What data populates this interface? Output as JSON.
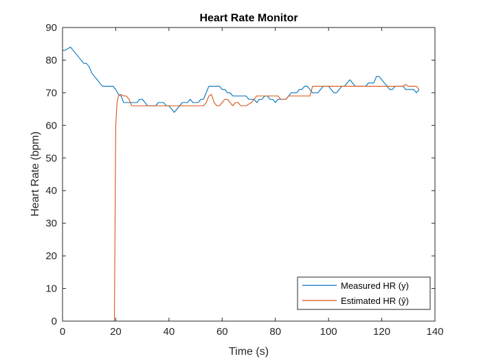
{
  "chart_data": {
    "type": "line",
    "title": "Heart Rate Monitor",
    "xlabel": "Time (s)",
    "ylabel": "Heart Rate (bpm)",
    "xlim": [
      0,
      140
    ],
    "ylim": [
      0,
      90
    ],
    "xticks": [
      0,
      20,
      40,
      60,
      80,
      100,
      120,
      140
    ],
    "yticks": [
      0,
      10,
      20,
      30,
      40,
      50,
      60,
      70,
      80,
      90
    ],
    "grid": false,
    "legend": "bottom-right",
    "series": [
      {
        "name": "Measured HR (y)",
        "color": "#0072BD",
        "points": [
          [
            0,
            83
          ],
          [
            1,
            83
          ],
          [
            2,
            83.5
          ],
          [
            3,
            84
          ],
          [
            4,
            83
          ],
          [
            5,
            82
          ],
          [
            6,
            81
          ],
          [
            7,
            80
          ],
          [
            8,
            79
          ],
          [
            9,
            79
          ],
          [
            10,
            78
          ],
          [
            11,
            76
          ],
          [
            12,
            75
          ],
          [
            13,
            74
          ],
          [
            14,
            73
          ],
          [
            15,
            72
          ],
          [
            16,
            72
          ],
          [
            17,
            72
          ],
          [
            18,
            72
          ],
          [
            19,
            72
          ],
          [
            20,
            71
          ],
          [
            21,
            69.5
          ],
          [
            22,
            69
          ],
          [
            23,
            67
          ],
          [
            24,
            67
          ],
          [
            25,
            67
          ],
          [
            26,
            67
          ],
          [
            27,
            67
          ],
          [
            28,
            67
          ],
          [
            29,
            68
          ],
          [
            30,
            68
          ],
          [
            31,
            67
          ],
          [
            32,
            66
          ],
          [
            33,
            66
          ],
          [
            34,
            66
          ],
          [
            35,
            66
          ],
          [
            36,
            67
          ],
          [
            37,
            67
          ],
          [
            38,
            67
          ],
          [
            39,
            66
          ],
          [
            40,
            66
          ],
          [
            41,
            65
          ],
          [
            42,
            64
          ],
          [
            43,
            65
          ],
          [
            44,
            66
          ],
          [
            45,
            67
          ],
          [
            46,
            67
          ],
          [
            47,
            67
          ],
          [
            48,
            68
          ],
          [
            49,
            67
          ],
          [
            50,
            67
          ],
          [
            51,
            67
          ],
          [
            52,
            68
          ],
          [
            53,
            68
          ],
          [
            54,
            70
          ],
          [
            55,
            72
          ],
          [
            56,
            72
          ],
          [
            57,
            72
          ],
          [
            58,
            72
          ],
          [
            59,
            72
          ],
          [
            60,
            71
          ],
          [
            61,
            71
          ],
          [
            62,
            70
          ],
          [
            63,
            70
          ],
          [
            64,
            69
          ],
          [
            65,
            69
          ],
          [
            66,
            69
          ],
          [
            67,
            69
          ],
          [
            68,
            69
          ],
          [
            69,
            69
          ],
          [
            70,
            68
          ],
          [
            71,
            68
          ],
          [
            72,
            68
          ],
          [
            73,
            67
          ],
          [
            74,
            68
          ],
          [
            75,
            68
          ],
          [
            76,
            69
          ],
          [
            77,
            69
          ],
          [
            78,
            68
          ],
          [
            79,
            68
          ],
          [
            80,
            67
          ],
          [
            81,
            68
          ],
          [
            82,
            68
          ],
          [
            83,
            68
          ],
          [
            84,
            68
          ],
          [
            85,
            69
          ],
          [
            86,
            70
          ],
          [
            87,
            70
          ],
          [
            88,
            70
          ],
          [
            89,
            71
          ],
          [
            90,
            71
          ],
          [
            91,
            72
          ],
          [
            92,
            72
          ],
          [
            93,
            71
          ],
          [
            94,
            70
          ],
          [
            95,
            70
          ],
          [
            96,
            70
          ],
          [
            97,
            71
          ],
          [
            98,
            72
          ],
          [
            99,
            72
          ],
          [
            100,
            72
          ],
          [
            101,
            71
          ],
          [
            102,
            70
          ],
          [
            103,
            70
          ],
          [
            104,
            71
          ],
          [
            105,
            72
          ],
          [
            106,
            72
          ],
          [
            107,
            73
          ],
          [
            108,
            74
          ],
          [
            109,
            73
          ],
          [
            110,
            72
          ],
          [
            111,
            72
          ],
          [
            112,
            72
          ],
          [
            113,
            72
          ],
          [
            114,
            72
          ],
          [
            115,
            73
          ],
          [
            116,
            73
          ],
          [
            117,
            73
          ],
          [
            118,
            75
          ],
          [
            119,
            75
          ],
          [
            120,
            74
          ],
          [
            121,
            73
          ],
          [
            122,
            72
          ],
          [
            123,
            71
          ],
          [
            124,
            71
          ],
          [
            125,
            72
          ],
          [
            126,
            72
          ],
          [
            127,
            72
          ],
          [
            128,
            72
          ],
          [
            129,
            71
          ],
          [
            130,
            71
          ],
          [
            131,
            71
          ],
          [
            132,
            71
          ],
          [
            133,
            70
          ],
          [
            134,
            71
          ]
        ]
      },
      {
        "name": "Estimated HR (ŷ)",
        "color": "#D95319",
        "points": [
          [
            0,
            0
          ],
          [
            19.5,
            0
          ],
          [
            20,
            60
          ],
          [
            20.5,
            67
          ],
          [
            21,
            69
          ],
          [
            22,
            69.5
          ],
          [
            23,
            69
          ],
          [
            24,
            69
          ],
          [
            25,
            68
          ],
          [
            26,
            66
          ],
          [
            27,
            66
          ],
          [
            28,
            66
          ],
          [
            29,
            66
          ],
          [
            30,
            66
          ],
          [
            31,
            66
          ],
          [
            32,
            66
          ],
          [
            33,
            66
          ],
          [
            34,
            66
          ],
          [
            35,
            66
          ],
          [
            36,
            66
          ],
          [
            37,
            66
          ],
          [
            38,
            66
          ],
          [
            39,
            66
          ],
          [
            40,
            66
          ],
          [
            41,
            66
          ],
          [
            42,
            66
          ],
          [
            43,
            66
          ],
          [
            44,
            66
          ],
          [
            45,
            66
          ],
          [
            46,
            66
          ],
          [
            47,
            66
          ],
          [
            48,
            66
          ],
          [
            49,
            66
          ],
          [
            50,
            66
          ],
          [
            51,
            66
          ],
          [
            52,
            66
          ],
          [
            53,
            66
          ],
          [
            54,
            67
          ],
          [
            55,
            69
          ],
          [
            56,
            69.5
          ],
          [
            57,
            67
          ],
          [
            58,
            66
          ],
          [
            59,
            66
          ],
          [
            60,
            67
          ],
          [
            61,
            68
          ],
          [
            62,
            68
          ],
          [
            63,
            67
          ],
          [
            64,
            66
          ],
          [
            65,
            67
          ],
          [
            66,
            67
          ],
          [
            67,
            66
          ],
          [
            68,
            66
          ],
          [
            69,
            66
          ],
          [
            70,
            66.5
          ],
          [
            71,
            67
          ],
          [
            72,
            68
          ],
          [
            73,
            69
          ],
          [
            74,
            69
          ],
          [
            75,
            69
          ],
          [
            76,
            69
          ],
          [
            77,
            69
          ],
          [
            78,
            69
          ],
          [
            79,
            69
          ],
          [
            80,
            69
          ],
          [
            81,
            69
          ],
          [
            82,
            68
          ],
          [
            83,
            68
          ],
          [
            84,
            68
          ],
          [
            85,
            69
          ],
          [
            86,
            69
          ],
          [
            87,
            69
          ],
          [
            88,
            69
          ],
          [
            89,
            69
          ],
          [
            90,
            69
          ],
          [
            91,
            69
          ],
          [
            92,
            69
          ],
          [
            93,
            69
          ],
          [
            94,
            72
          ],
          [
            95,
            72
          ],
          [
            96,
            72
          ],
          [
            97,
            72
          ],
          [
            98,
            72
          ],
          [
            99,
            72
          ],
          [
            100,
            72
          ],
          [
            101,
            72
          ],
          [
            102,
            72
          ],
          [
            103,
            72
          ],
          [
            104,
            72
          ],
          [
            105,
            72
          ],
          [
            106,
            72
          ],
          [
            107,
            72
          ],
          [
            108,
            72
          ],
          [
            109,
            72
          ],
          [
            110,
            72
          ],
          [
            111,
            72
          ],
          [
            112,
            72
          ],
          [
            113,
            72
          ],
          [
            114,
            72
          ],
          [
            115,
            72
          ],
          [
            116,
            72
          ],
          [
            117,
            72
          ],
          [
            118,
            72
          ],
          [
            119,
            72
          ],
          [
            120,
            72
          ],
          [
            121,
            72
          ],
          [
            122,
            72
          ],
          [
            123,
            72
          ],
          [
            124,
            72
          ],
          [
            125,
            72
          ],
          [
            126,
            72
          ],
          [
            127,
            72
          ],
          [
            128,
            72
          ],
          [
            129,
            72.5
          ],
          [
            130,
            72
          ],
          [
            131,
            72
          ],
          [
            132,
            72
          ],
          [
            133,
            72
          ],
          [
            134,
            71
          ]
        ]
      }
    ]
  }
}
